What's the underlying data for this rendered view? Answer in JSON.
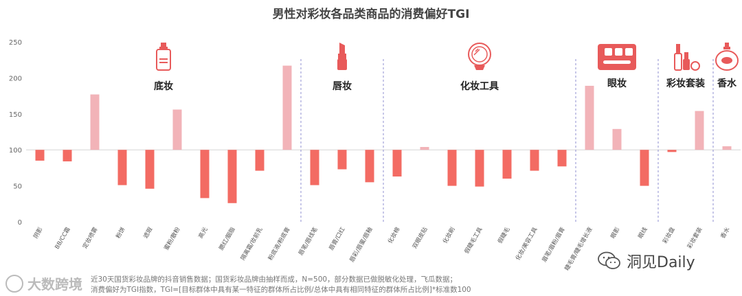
{
  "chart_data": {
    "type": "bar",
    "title": "男性对彩妆各品类商品的消费偏好TGI",
    "baseline": 100,
    "ylim": [
      0,
      250
    ],
    "yticks": [
      0,
      50,
      100,
      150,
      200,
      250
    ],
    "grid": false,
    "colors": {
      "above": "#f2b3b8",
      "below": "#f36b63",
      "divider": "#8f8fd0",
      "icon": "#e85a5a"
    },
    "categories": [
      "阴影",
      "BB/CC霜",
      "定妆喷雾",
      "粉饼",
      "遮瑕",
      "蜜粉/散粉",
      "高光",
      "腮红/胭脂",
      "隔离霜/妆前乳",
      "粉底液/粉底膏",
      "唇笔/唇线笔",
      "唇膏/口红",
      "唇彩/唇蜜/唇釉",
      "化妆棉",
      "双眼皮贴",
      "化妆刷",
      "假睫毛工具",
      "假睫毛",
      "化妆/美容工具",
      "眉笔/眉粉/眉膏",
      "睫毛膏/睫毛增长液",
      "眼影",
      "眼线",
      "彩妆盘",
      "彩妆套装",
      "香水"
    ],
    "values": [
      85,
      84,
      177,
      51,
      46,
      156,
      33,
      26,
      71,
      217,
      51,
      73,
      55,
      63,
      104,
      50,
      49,
      60,
      71,
      77,
      189,
      129,
      50,
      97,
      154,
      105
    ],
    "groups": [
      {
        "name": "底妆",
        "icon": "foundation-bottle-icon",
        "start": 0,
        "end": 9
      },
      {
        "name": "唇妆",
        "icon": "lipstick-icon",
        "start": 10,
        "end": 12
      },
      {
        "name": "化妆工具",
        "icon": "vanity-mirror-icon",
        "start": 13,
        "end": 19
      },
      {
        "name": "眼妆",
        "icon": "eyeshadow-palette-icon",
        "start": 20,
        "end": 22
      },
      {
        "name": "彩妆套装",
        "icon": "makeup-set-icon",
        "start": 23,
        "end": 24
      },
      {
        "name": "香水",
        "icon": "perfume-bottle-icon",
        "start": 25,
        "end": 25
      }
    ]
  },
  "footnote": {
    "line1": "近30天国货彩妆品牌的抖音销售数据；国货彩妆品牌由抽样而成，N=500，部分数据已做脱敏化处理，飞瓜数据；",
    "line2": "消费偏好为TGI指数，TGI=[目标群体中具有某一特征的群体所占比例/总体中具有相同特征的群体所占比例]*标准数100"
  },
  "branding": {
    "left": "大数跨境",
    "right": "洞见Daily",
    "right_icon": "wechat-icon"
  }
}
